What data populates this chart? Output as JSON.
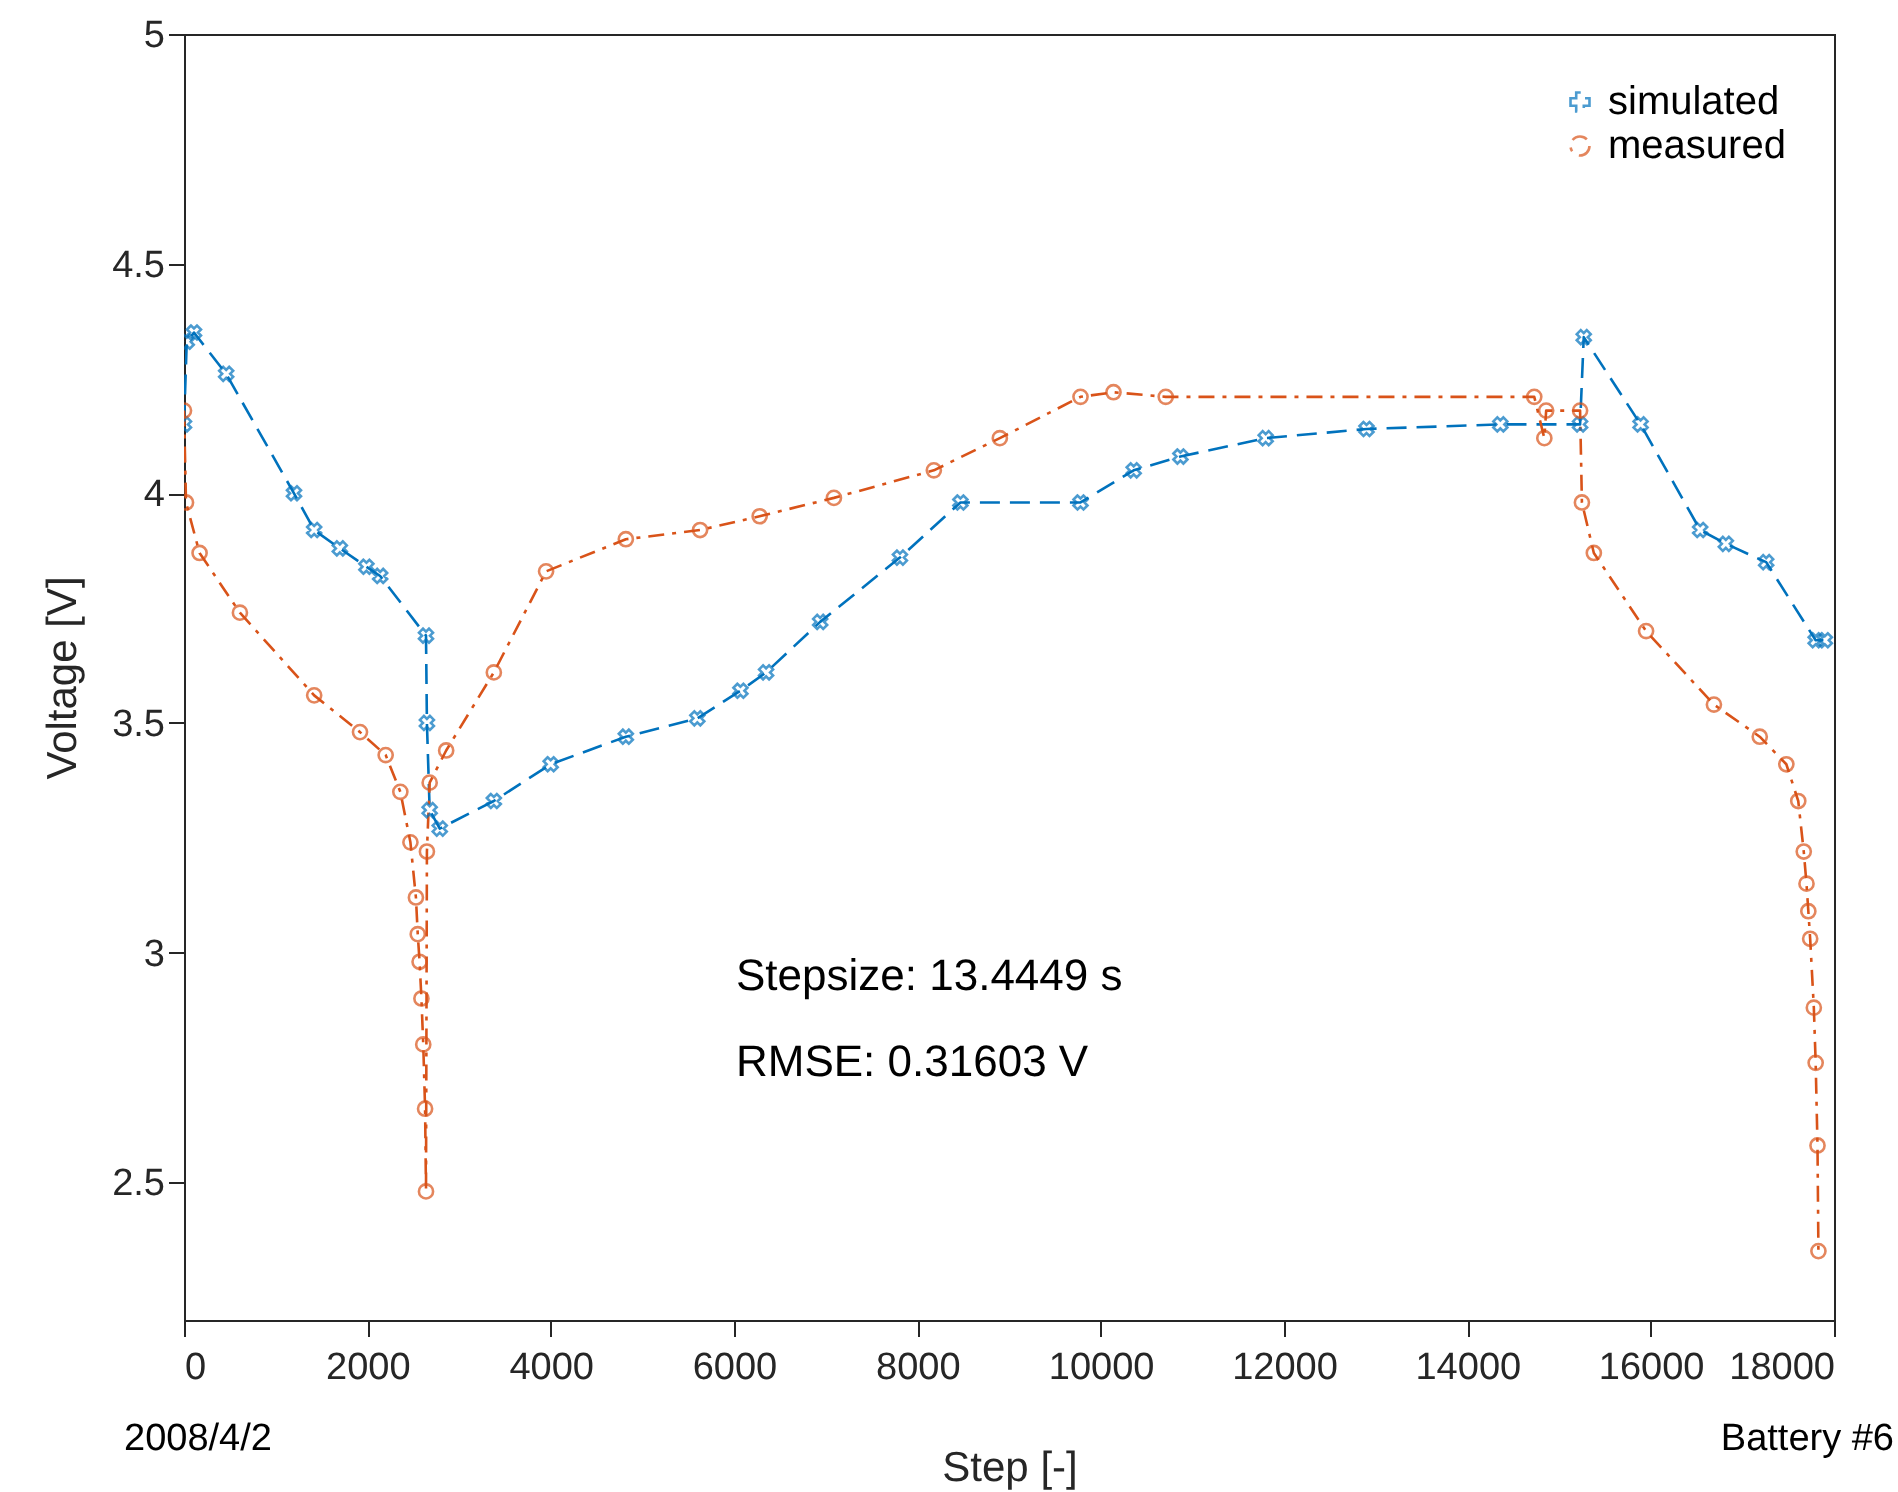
{
  "chart_data": {
    "type": "line",
    "xlabel": "Step [-]",
    "ylabel": "Voltage [V]",
    "annotations": [
      "Stepsize: 13.4449 s",
      "RMSE: 0.31603 V",
      "2008/4/2",
      "Battery #6"
    ],
    "xlim": [
      0,
      18000
    ],
    "xticks": [
      0,
      2000,
      4000,
      6000,
      8000,
      10000,
      12000,
      14000,
      16000,
      18000
    ],
    "ylim": [
      2.2,
      5
    ],
    "yticks": [
      2.5,
      3,
      3.5,
      4,
      4.5,
      5
    ],
    "grid": false,
    "legend": "top right",
    "series": [
      {
        "name": "simulated",
        "color": "#0072bd",
        "marker": "cross",
        "line_style": "dashed",
        "x": [
          0,
          30,
          109,
          460,
          1200,
          1420,
          1700,
          1990,
          2140,
          2640,
          2650,
          2680,
          2790,
          3380,
          4000,
          4820,
          5600,
          6070,
          6350,
          6940,
          7810,
          8470,
          9780,
          10360,
          10870,
          11800,
          12900,
          14360,
          15230,
          15270,
          15890,
          16540,
          16820,
          17260,
          17800,
          17900
        ],
        "values": [
          4.15,
          4.33,
          4.35,
          4.26,
          4.0,
          3.92,
          3.88,
          3.84,
          3.82,
          3.69,
          3.5,
          3.31,
          3.27,
          3.33,
          3.41,
          3.47,
          3.51,
          3.57,
          3.61,
          3.72,
          3.86,
          3.98,
          3.98,
          4.05,
          4.08,
          4.12,
          4.14,
          4.15,
          4.15,
          4.34,
          4.15,
          3.92,
          3.89,
          3.85,
          3.68,
          3.68
        ]
      },
      {
        "name": "measured",
        "color": "#d95319",
        "marker": "circle",
        "line_style": "dotted",
        "x": [
          0,
          22,
          170,
          610,
          1420,
          1920,
          2200,
          2360,
          2470,
          2530,
          2550,
          2570,
          2590,
          2610,
          2630,
          2640,
          2650,
          2680,
          2860,
          3380,
          3950,
          4820,
          5630,
          6280,
          7090,
          8180,
          8900,
          9780,
          10140,
          10710,
          14730,
          14840,
          14860,
          15230,
          15250,
          15380,
          15950,
          16690,
          17190,
          17480,
          17610,
          17670,
          17700,
          17720,
          17740,
          17780,
          17800,
          17820,
          17830
        ],
        "values": [
          4.18,
          3.98,
          3.87,
          3.74,
          3.56,
          3.48,
          3.43,
          3.35,
          3.24,
          3.12,
          3.04,
          2.98,
          2.9,
          2.8,
          2.66,
          2.48,
          3.22,
          3.37,
          3.44,
          3.61,
          3.83,
          3.9,
          3.92,
          3.95,
          3.99,
          4.05,
          4.12,
          4.21,
          4.22,
          4.21,
          4.21,
          4.12,
          4.18,
          4.18,
          3.98,
          3.87,
          3.7,
          3.54,
          3.47,
          3.41,
          3.33,
          3.22,
          3.15,
          3.09,
          3.03,
          2.88,
          2.76,
          2.58,
          2.35
        ]
      }
    ]
  }
}
